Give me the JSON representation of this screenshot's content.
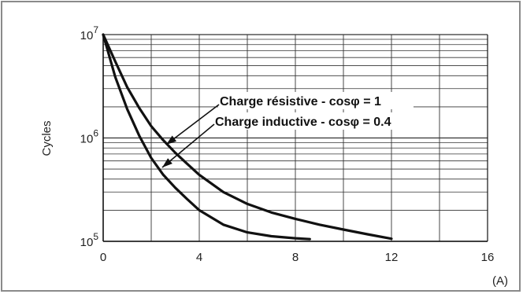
{
  "chart_data": {
    "type": "line",
    "ylabel": "Cycles",
    "xlabel": "",
    "x_unit": "(A)",
    "xlim": [
      0,
      16
    ],
    "ylim": [
      100000,
      10000000
    ],
    "y_scale": "log",
    "grid": true,
    "x_ticks": [
      0,
      4,
      8,
      12,
      16
    ],
    "y_ticks": [
      {
        "value": 100000,
        "mantissa": "10",
        "exponent": "5"
      },
      {
        "value": 1000000,
        "mantissa": "10",
        "exponent": "6"
      },
      {
        "value": 10000000,
        "mantissa": "10",
        "exponent": "7"
      }
    ],
    "series": [
      {
        "name": "Charge résistive - cosφ = 1",
        "color": "#111111",
        "x": [
          0,
          0.5,
          1,
          1.5,
          2,
          2.5,
          3,
          3.5,
          4,
          5,
          6,
          7,
          8,
          9,
          10,
          11,
          12
        ],
        "y": [
          10000000,
          5500000,
          3100000,
          1950000,
          1300000,
          950000,
          720000,
          560000,
          440000,
          300000,
          230000,
          190000,
          165000,
          145000,
          130000,
          117000,
          106000
        ]
      },
      {
        "name": "Charge inductive - cosφ = 0.4",
        "color": "#111111",
        "x": [
          0,
          0.5,
          1,
          1.5,
          2,
          2.5,
          3,
          3.5,
          4,
          5,
          6,
          7,
          8,
          8.6
        ],
        "y": [
          10000000,
          3900000,
          1900000,
          1050000,
          640000,
          440000,
          330000,
          255000,
          200000,
          145000,
          122000,
          112000,
          107000,
          105000
        ]
      }
    ]
  }
}
